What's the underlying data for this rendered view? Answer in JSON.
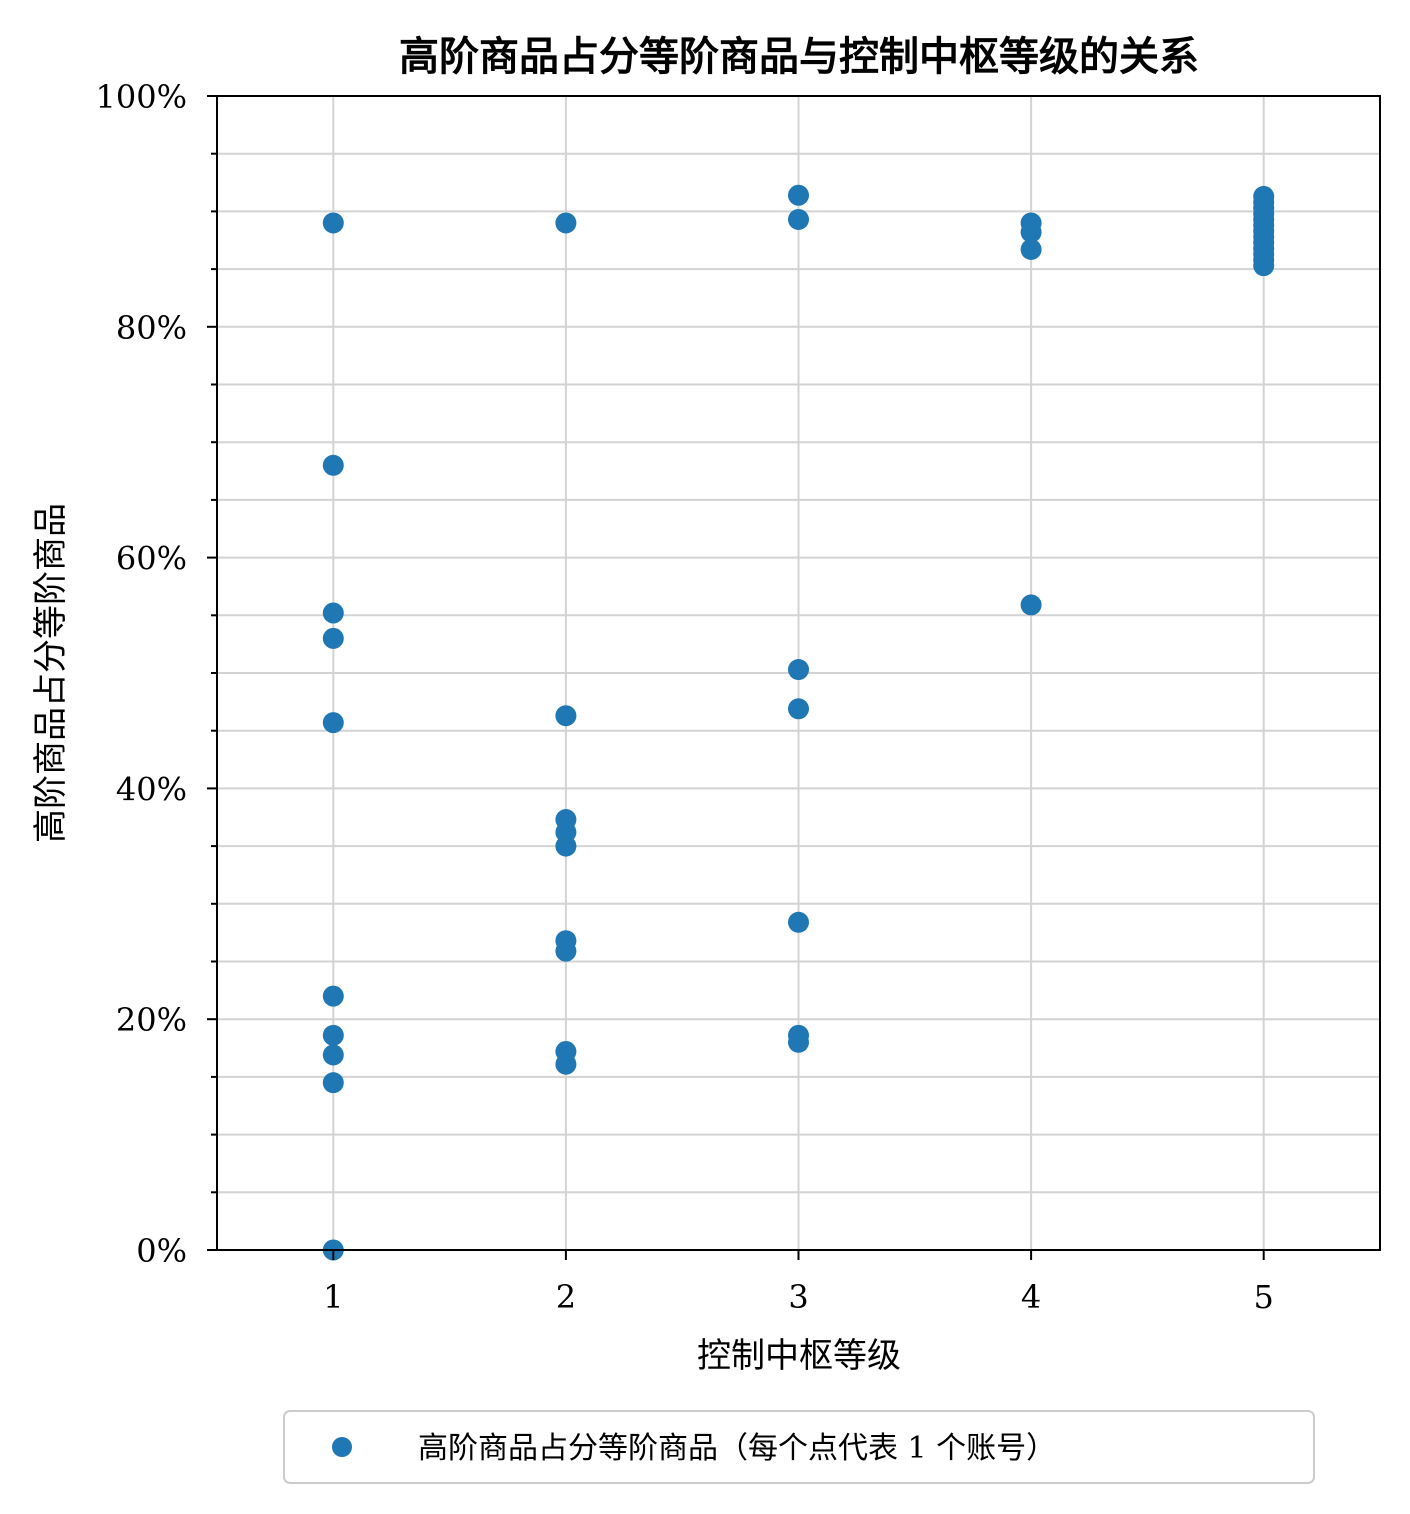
{
  "chart_data": {
    "type": "scatter",
    "title": "高阶商品占分等阶商品与控制中枢等级的关系",
    "xlabel": "控制中枢等级",
    "ylabel": "高阶商品占分等阶商品",
    "xlim": [
      0.5,
      5.5
    ],
    "ylim": [
      0,
      1
    ],
    "x_ticks": [
      1,
      2,
      3,
      4,
      5
    ],
    "x_tick_labels": [
      "1",
      "2",
      "3",
      "4",
      "5"
    ],
    "y_ticks": [
      0,
      0.2,
      0.4,
      0.6,
      0.8,
      1.0
    ],
    "y_tick_labels": [
      "0%",
      "20%",
      "40%",
      "60%",
      "80%",
      "100%"
    ],
    "y_minor_ticks": [
      0.05,
      0.1,
      0.15,
      0.25,
      0.3,
      0.35,
      0.45,
      0.5,
      0.55,
      0.65,
      0.7,
      0.75,
      0.85,
      0.9,
      0.95
    ],
    "grid": true,
    "legend_position": "bottom-center, below plot",
    "marker_color": "#1f77b4",
    "series": [
      {
        "name": "高阶商品占分等阶商品（每个点代表 1 个账号）",
        "points": [
          {
            "x": 1,
            "y": 0.89
          },
          {
            "x": 1,
            "y": 0.68
          },
          {
            "x": 1,
            "y": 0.552
          },
          {
            "x": 1,
            "y": 0.53
          },
          {
            "x": 1,
            "y": 0.457
          },
          {
            "x": 1,
            "y": 0.22
          },
          {
            "x": 1,
            "y": 0.186
          },
          {
            "x": 1,
            "y": 0.169
          },
          {
            "x": 1,
            "y": 0.145
          },
          {
            "x": 1,
            "y": 0.0
          },
          {
            "x": 2,
            "y": 0.89
          },
          {
            "x": 2,
            "y": 0.463
          },
          {
            "x": 2,
            "y": 0.373
          },
          {
            "x": 2,
            "y": 0.362
          },
          {
            "x": 2,
            "y": 0.35
          },
          {
            "x": 2,
            "y": 0.268
          },
          {
            "x": 2,
            "y": 0.259
          },
          {
            "x": 2,
            "y": 0.172
          },
          {
            "x": 2,
            "y": 0.161
          },
          {
            "x": 3,
            "y": 0.914
          },
          {
            "x": 3,
            "y": 0.893
          },
          {
            "x": 3,
            "y": 0.503
          },
          {
            "x": 3,
            "y": 0.469
          },
          {
            "x": 3,
            "y": 0.284
          },
          {
            "x": 3,
            "y": 0.186
          },
          {
            "x": 3,
            "y": 0.18
          },
          {
            "x": 4,
            "y": 0.89
          },
          {
            "x": 4,
            "y": 0.882
          },
          {
            "x": 4,
            "y": 0.867
          },
          {
            "x": 4,
            "y": 0.559
          },
          {
            "x": 5,
            "y": 0.913
          },
          {
            "x": 5,
            "y": 0.908
          },
          {
            "x": 5,
            "y": 0.903
          },
          {
            "x": 5,
            "y": 0.898
          },
          {
            "x": 5,
            "y": 0.893
          },
          {
            "x": 5,
            "y": 0.888
          },
          {
            "x": 5,
            "y": 0.883
          },
          {
            "x": 5,
            "y": 0.878
          },
          {
            "x": 5,
            "y": 0.873
          },
          {
            "x": 5,
            "y": 0.868
          },
          {
            "x": 5,
            "y": 0.863
          },
          {
            "x": 5,
            "y": 0.858
          },
          {
            "x": 5,
            "y": 0.853
          }
        ]
      }
    ]
  }
}
